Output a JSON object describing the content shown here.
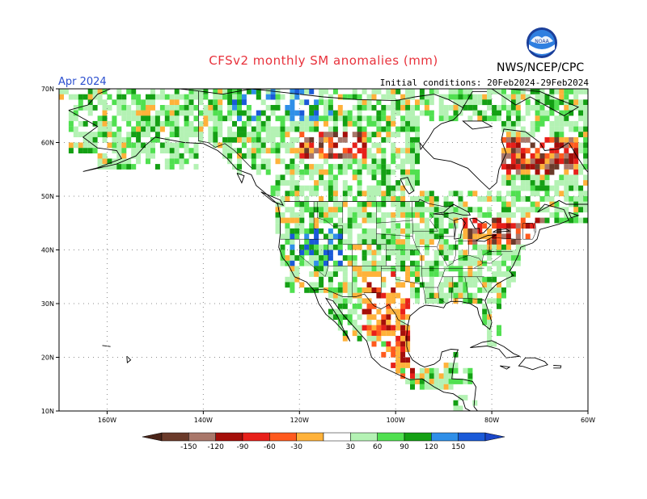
{
  "header": {
    "title": "CFSv2 monthly SM anomalies (mm)",
    "month": "Apr 2024",
    "initial_conditions": "Initial conditions: 20Feb2024-29Feb2024",
    "agency": "NWS/NCEP/CPC",
    "logo_icon": "noaa-logo-icon",
    "logo_text": "NOAA"
  },
  "map": {
    "lat_labels": [
      "70N",
      "60N",
      "50N",
      "40N",
      "30N",
      "20N",
      "10N"
    ],
    "lat_values": [
      70,
      60,
      50,
      40,
      30,
      20,
      10
    ],
    "lon_labels": [
      "160W",
      "140W",
      "120W",
      "100W",
      "80W",
      "60W"
    ],
    "lon_values": [
      -160,
      -140,
      -120,
      -100,
      -80,
      -60
    ],
    "lon_range": [
      -170,
      -60
    ],
    "lat_range": [
      10,
      70
    ],
    "grid": true
  },
  "legend": {
    "labels": [
      "-150",
      "-120",
      "-90",
      "-60",
      "-30",
      "30",
      "60",
      "90",
      "120",
      "150"
    ],
    "colors": [
      "#6b3a2a",
      "#a9776a",
      "#a50f0a",
      "#e8201a",
      "#ff5a1e",
      "#ffb23a",
      "#ffffff",
      "#b4f2b4",
      "#50e050",
      "#14a014",
      "#2f8fe8",
      "#1a5ad8"
    ],
    "undercolor": "#4a2418",
    "overcolor": "#1a46c8"
  },
  "colors": {
    "coastline": "#000000",
    "grid": "#8c8c8c",
    "border": "#000000",
    "title": "#e8323c",
    "month": "#2b4fcf"
  }
}
